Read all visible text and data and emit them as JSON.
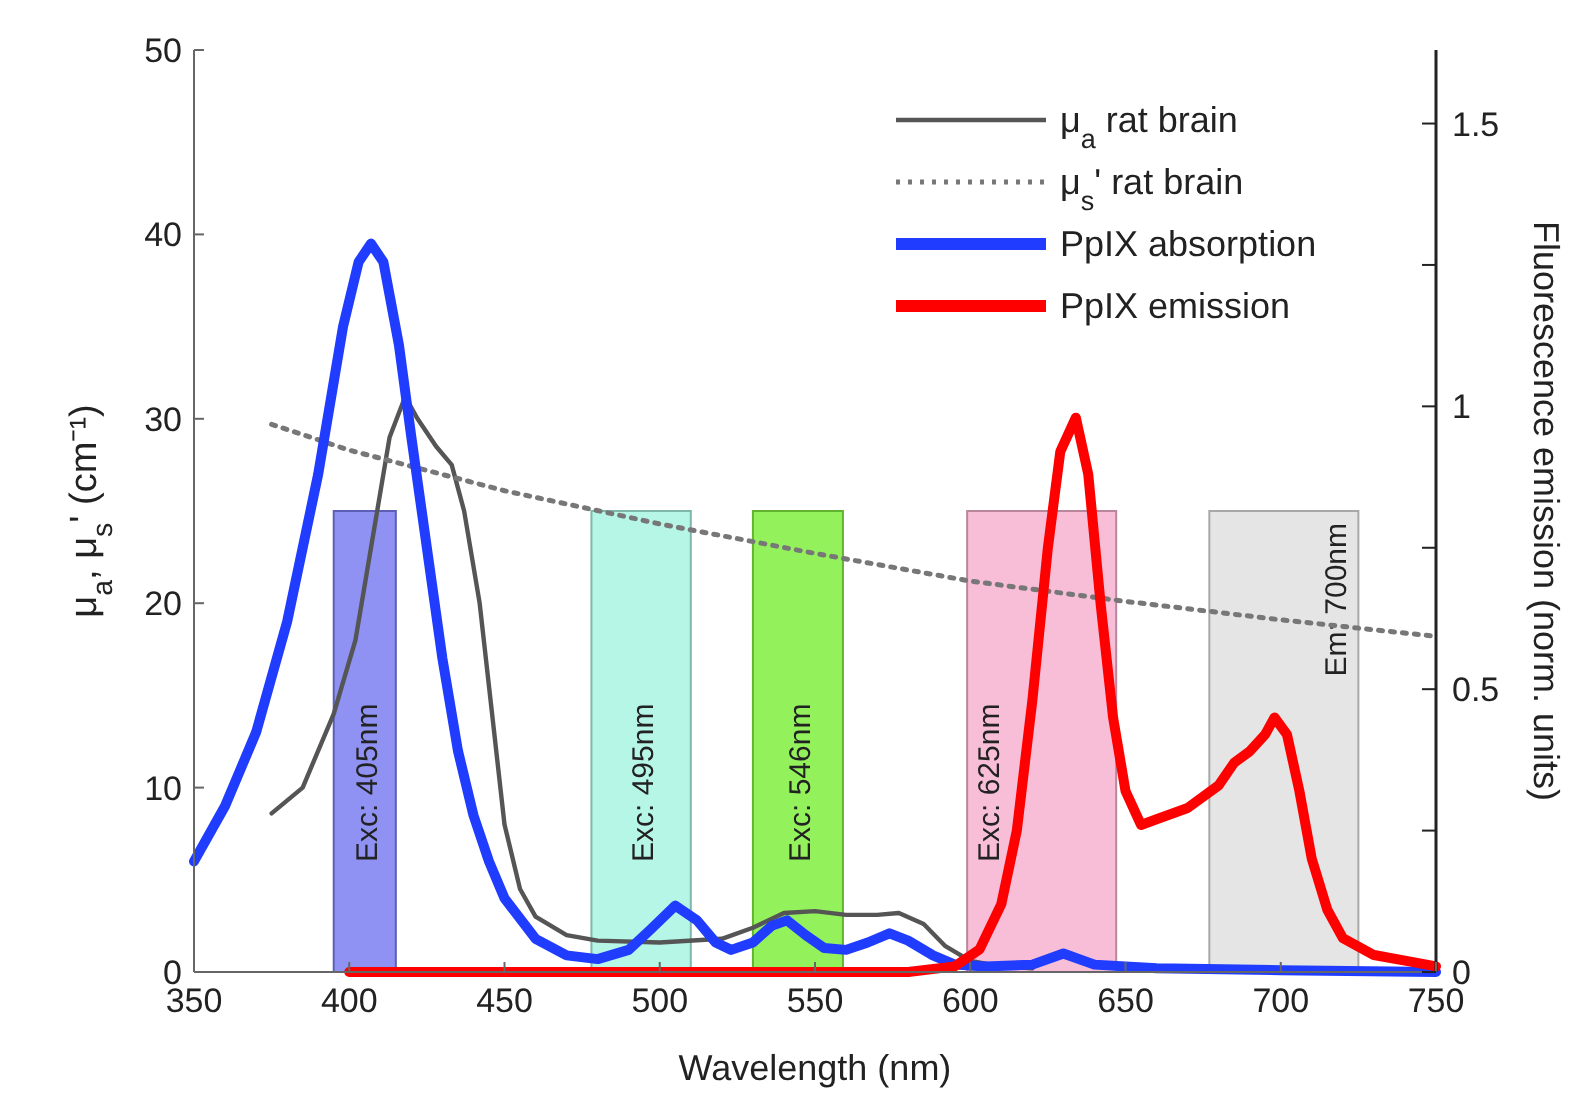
{
  "chart_data": {
    "type": "line",
    "xlabel": "Wavelength (nm)",
    "ylabel": "μ$_{a}$, μ$_{s}$' (cm⁻¹)",
    "y2label": "Fluorescence emission (norm. units)",
    "xlim": [
      350,
      750
    ],
    "xticks": [
      350,
      400,
      450,
      500,
      550,
      600,
      650,
      700,
      750
    ],
    "ylim": [
      0,
      50
    ],
    "yticks": [
      0,
      10,
      20,
      30,
      40,
      50
    ],
    "y2lim": [
      0,
      1.63
    ],
    "y2ticks": [
      0,
      {
        "value": 0.25,
        "label": null
      },
      0.5,
      {
        "value": 0.75,
        "label": null
      },
      1,
      {
        "value": 1.25,
        "label": null
      },
      1.5
    ],
    "legend": "top right",
    "grid": false,
    "bands": [
      {
        "axis": "x",
        "from": 395,
        "to": 415,
        "label": "Exc: 405nm",
        "color": "#7b7ff0"
      },
      {
        "axis": "x",
        "from": 478,
        "to": 510,
        "label": "Exc: 495nm",
        "color": "#a8f5e2"
      },
      {
        "axis": "x",
        "from": 530,
        "to": 559,
        "label": "Exc: 546nm",
        "color": "#80f040"
      },
      {
        "axis": "x",
        "from": 599,
        "to": 647,
        "label": "Exc: 625nm",
        "color": "#f7b2d0"
      },
      {
        "axis": "x",
        "from": 677,
        "to": 725,
        "label": "Em: 700nm",
        "color": "#e0e0e0"
      }
    ],
    "series": [
      {
        "name": "μ$_{a}$ rat brain",
        "color": "#555555",
        "line_style": "solid",
        "x": [
          375,
          385,
          395,
          402,
          408,
          413,
          418,
          422,
          428,
          433,
          437,
          442,
          446,
          450,
          455,
          460,
          470,
          480,
          500,
          520,
          530,
          540,
          550,
          560,
          570,
          577,
          585,
          592,
          600,
          610,
          620
        ],
        "values": [
          8.6,
          10,
          14,
          18,
          24,
          29,
          31.2,
          30,
          28.5,
          27.5,
          25,
          20,
          14,
          8,
          4.5,
          3,
          2,
          1.7,
          1.6,
          1.8,
          2.4,
          3.2,
          3.3,
          3.1,
          3.1,
          3.2,
          2.6,
          1.4,
          0.6,
          0.3,
          0.2
        ]
      },
      {
        "name": "μ$_{s}$' rat brain",
        "color": "#777777",
        "line_style": "dotted",
        "x": [
          375,
          400,
          450,
          500,
          550,
          600,
          650,
          700,
          750
        ],
        "values": [
          29.7,
          28.3,
          26.1,
          24.3,
          22.7,
          21.2,
          20.1,
          19.1,
          18.2
        ]
      },
      {
        "name": "PpIX absorption",
        "color": "#1f3cff",
        "line_style": "solid",
        "x": [
          350,
          360,
          370,
          380,
          390,
          398,
          403,
          407,
          411,
          416,
          420,
          425,
          430,
          435,
          440,
          445,
          450,
          460,
          470,
          480,
          490,
          497,
          505,
          512,
          518,
          523,
          530,
          536,
          541,
          547,
          553,
          560,
          567,
          574,
          580,
          588,
          595,
          605,
          620,
          630,
          640,
          660,
          700,
          750
        ],
        "values": [
          6,
          9,
          13,
          19,
          27,
          35,
          38.5,
          39.5,
          38.5,
          34,
          29,
          23,
          17,
          12,
          8.5,
          6,
          4,
          1.8,
          0.9,
          0.7,
          1.2,
          2.3,
          3.6,
          2.8,
          1.6,
          1.2,
          1.6,
          2.5,
          2.8,
          2,
          1.3,
          1.2,
          1.6,
          2.1,
          1.7,
          0.9,
          0.4,
          0.3,
          0.4,
          1,
          0.4,
          0.2,
          0.1,
          0
        ]
      },
      {
        "name": "PpIX emission",
        "color": "#ff0000",
        "line_style": "solid",
        "axis": "y2",
        "x": [
          400,
          450,
          500,
          550,
          580,
          595,
          603,
          610,
          615,
          620,
          625,
          629,
          634,
          638,
          642,
          646,
          650,
          655,
          660,
          670,
          680,
          685,
          690,
          695,
          698,
          702,
          706,
          710,
          715,
          720,
          730,
          740,
          750
        ],
        "values": [
          0,
          0,
          0,
          0,
          0,
          0.01,
          0.04,
          0.12,
          0.25,
          0.48,
          0.75,
          0.92,
          0.98,
          0.88,
          0.65,
          0.45,
          0.32,
          0.26,
          0.27,
          0.29,
          0.33,
          0.37,
          0.39,
          0.42,
          0.45,
          0.42,
          0.32,
          0.2,
          0.11,
          0.06,
          0.03,
          0.02,
          0.01
        ]
      }
    ]
  }
}
